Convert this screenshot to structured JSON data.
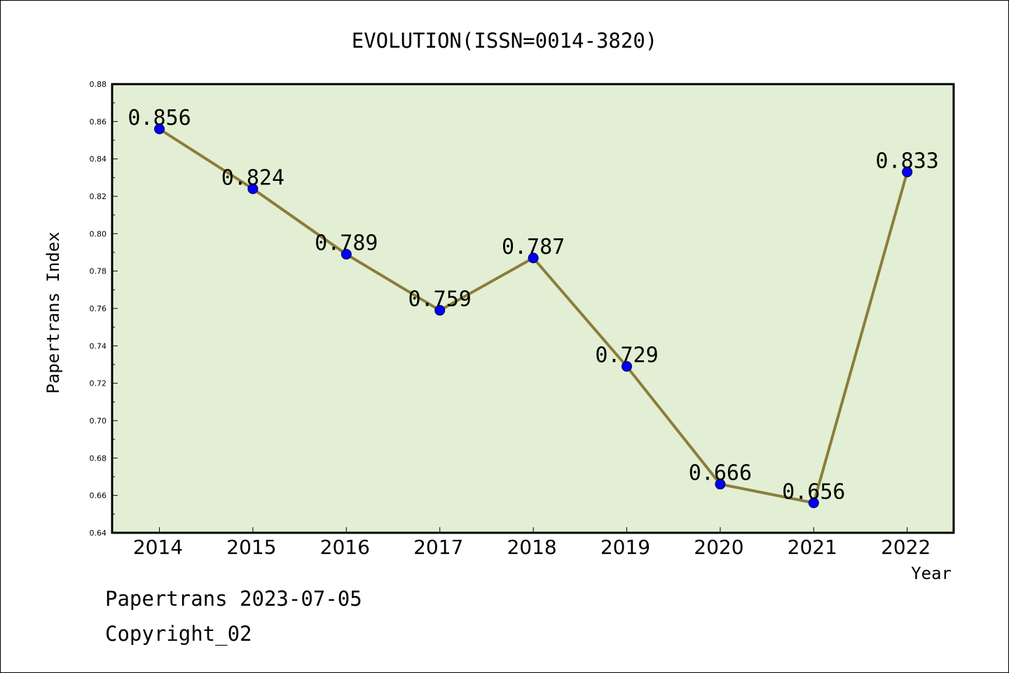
{
  "chart_data": {
    "type": "line",
    "title": "EVOLUTION(ISSN=0014-3820)",
    "xlabel": "Year",
    "ylabel": "Papertrans Index",
    "categories": [
      "2014",
      "2015",
      "2016",
      "2017",
      "2018",
      "2019",
      "2020",
      "2021",
      "2022"
    ],
    "values": [
      0.856,
      0.824,
      0.789,
      0.759,
      0.787,
      0.729,
      0.666,
      0.656,
      0.833
    ],
    "data_labels": [
      "0.856",
      "0.824",
      "0.789",
      "0.759",
      "0.787",
      "0.729",
      "0.666",
      "0.656",
      "0.833"
    ],
    "ylim": [
      0.64,
      0.88
    ],
    "yticks": [
      "0.64",
      "0.66",
      "0.68",
      "0.70",
      "0.72",
      "0.74",
      "0.76",
      "0.78",
      "0.80",
      "0.82",
      "0.84",
      "0.86",
      "0.88"
    ],
    "grid": false,
    "colors": {
      "plot_background": "#e2efd4",
      "line": "#8b7d3a",
      "marker": "#0000ff"
    }
  },
  "footer": {
    "line1": "Papertrans 2023-07-05",
    "line2": "Copyright_02"
  }
}
